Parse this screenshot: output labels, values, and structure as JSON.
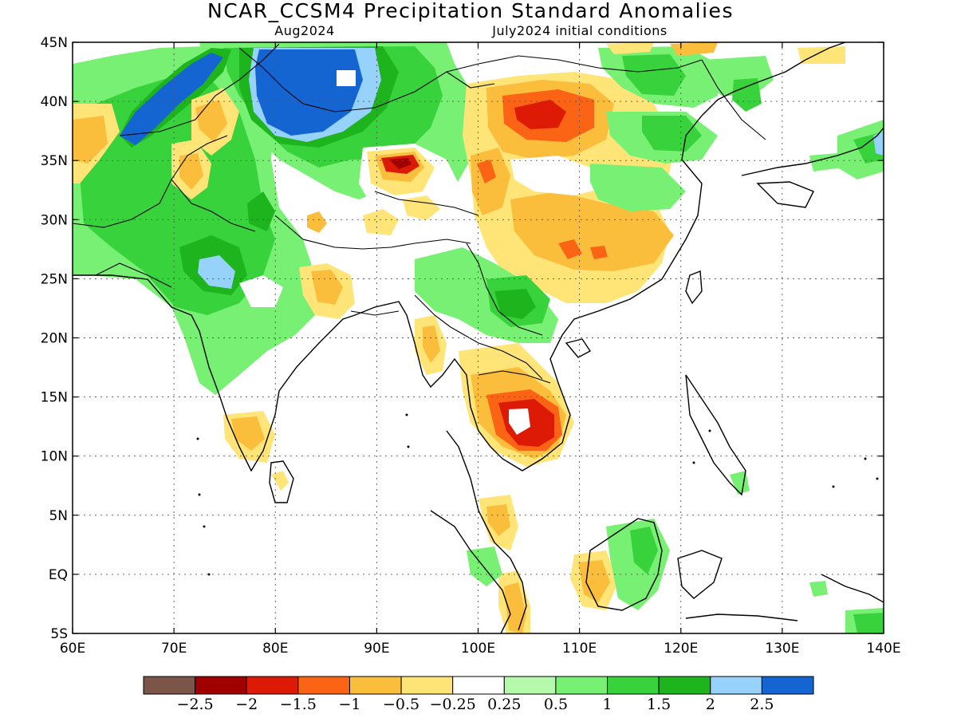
{
  "header": {
    "title": "NCAR_CCSM4 Precipitation Standard Anomalies",
    "lead_month": "Aug2024",
    "init": "July2024 initial conditions"
  },
  "map": {
    "lon_range": [
      60,
      140
    ],
    "lat_range": [
      -5,
      45
    ],
    "lon_labels": [
      "60E",
      "70E",
      "80E",
      "90E",
      "100E",
      "110E",
      "120E",
      "130E",
      "140E"
    ],
    "lat_labels": [
      "45N",
      "40N",
      "35N",
      "30N",
      "25N",
      "20N",
      "15N",
      "10N",
      "5N",
      "EQ",
      "5S"
    ]
  },
  "legend": {
    "colors": [
      "#7b5547",
      "#a00000",
      "#dc1a05",
      "#fa6414",
      "#fabe3c",
      "#ffe478",
      "#ffffff",
      "#b4faaa",
      "#78f073",
      "#37d23c",
      "#1eb41e",
      "#96d2fa",
      "#1464d2"
    ],
    "labels": [
      "−2.5",
      "−2",
      "−1.5",
      "−1",
      "−0.5",
      "−0.25",
      "0.25",
      "0.5",
      "1",
      "1.5",
      "2",
      "2.5"
    ]
  }
}
